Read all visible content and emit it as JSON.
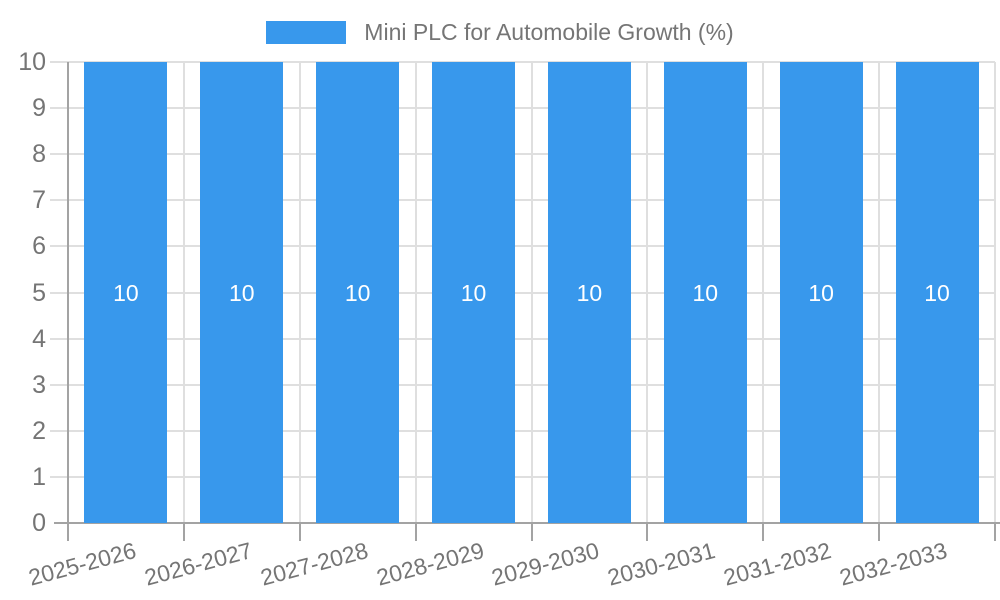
{
  "colors": {
    "bar": "#3898ec",
    "grid": "#dfdfdf",
    "axis": "#a3a3a3",
    "label_text": "#757575",
    "bar_value_label": "#ffffff",
    "background": "#ffffff"
  },
  "chart_data": {
    "type": "bar",
    "title": "Mini PLC for Automobile Growth (%)",
    "categories": [
      "2025-2026",
      "2026-2027",
      "2027-2028",
      "2028-2029",
      "2029-2030",
      "2030-2031",
      "2031-2032",
      "2032-2033"
    ],
    "series": [
      {
        "name": "Mini PLC for Automobile Growth (%)",
        "values": [
          10,
          10,
          10,
          10,
          10,
          10,
          10,
          10
        ]
      }
    ],
    "bar_value_labels": [
      "10",
      "10",
      "10",
      "10",
      "10",
      "10",
      "10",
      "10"
    ],
    "ylim": [
      0,
      10
    ],
    "yticks": [
      0,
      1,
      2,
      3,
      4,
      5,
      6,
      7,
      8,
      9,
      10
    ],
    "grid": true,
    "legend_position": "top"
  }
}
